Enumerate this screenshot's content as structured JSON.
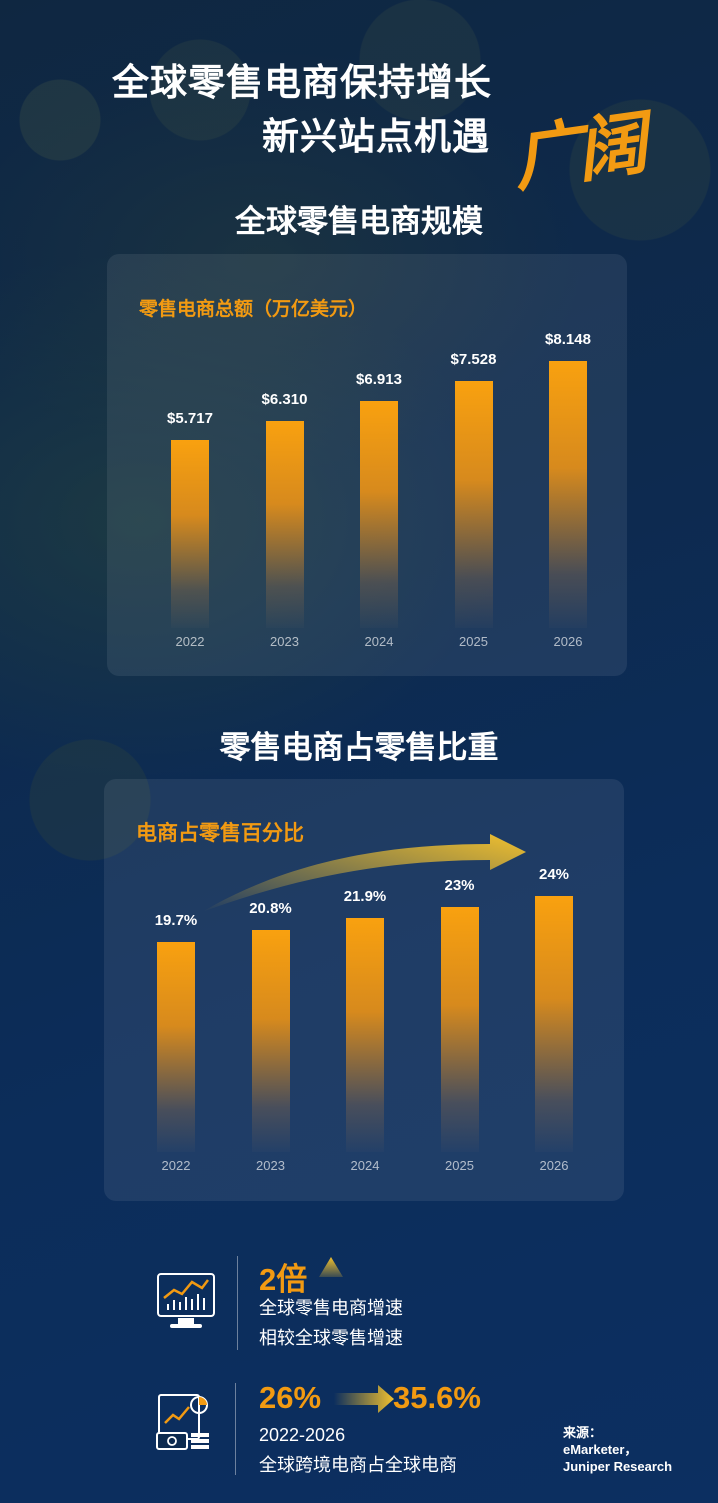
{
  "header": {
    "title_line1": "全球零售电商保持增长",
    "title_line2": "新兴站点机遇",
    "calligraphy": "广阔"
  },
  "section1": {
    "title": "全球零售电商规模",
    "chart_label": "零售电商总额（万亿美元）"
  },
  "section2": {
    "title": "零售电商占零售比重",
    "chart_label": "电商占零售百分比"
  },
  "chart_data": [
    {
      "type": "bar",
      "title": "零售电商总额（万亿美元）",
      "categories": [
        "2022",
        "2023",
        "2024",
        "2025",
        "2026"
      ],
      "values": [
        5.717,
        6.31,
        6.913,
        7.528,
        8.148
      ],
      "labels": [
        "$5.717",
        "$6.310",
        "$6.913",
        "$7.528",
        "$8.148"
      ],
      "ylim": [
        0,
        10
      ],
      "grid": false
    },
    {
      "type": "bar",
      "title": "电商占零售百分比",
      "categories": [
        "2022",
        "2023",
        "2024",
        "2025",
        "2026"
      ],
      "values": [
        19.7,
        20.8,
        21.9,
        23,
        24
      ],
      "labels": [
        "19.7%",
        "20.8%",
        "21.9%",
        "23%",
        "24%"
      ],
      "ylim": [
        0,
        30
      ],
      "grid": false
    }
  ],
  "stats": {
    "item1": {
      "big": "2倍",
      "line1": "全球零售电商增速",
      "line2": "相较全球零售增速",
      "icon": "monitor-chart-icon"
    },
    "item2": {
      "from": "26%",
      "to": "35.6%",
      "line1": "2022-2026",
      "line2": "全球跨境电商占全球电商",
      "icon": "documents-money-icon"
    }
  },
  "source": {
    "label": "来源：",
    "line1": "eMarketer，",
    "line2": "Juniper Research"
  },
  "colors": {
    "accent": "#f29a12",
    "background": "#0d2a4f"
  }
}
